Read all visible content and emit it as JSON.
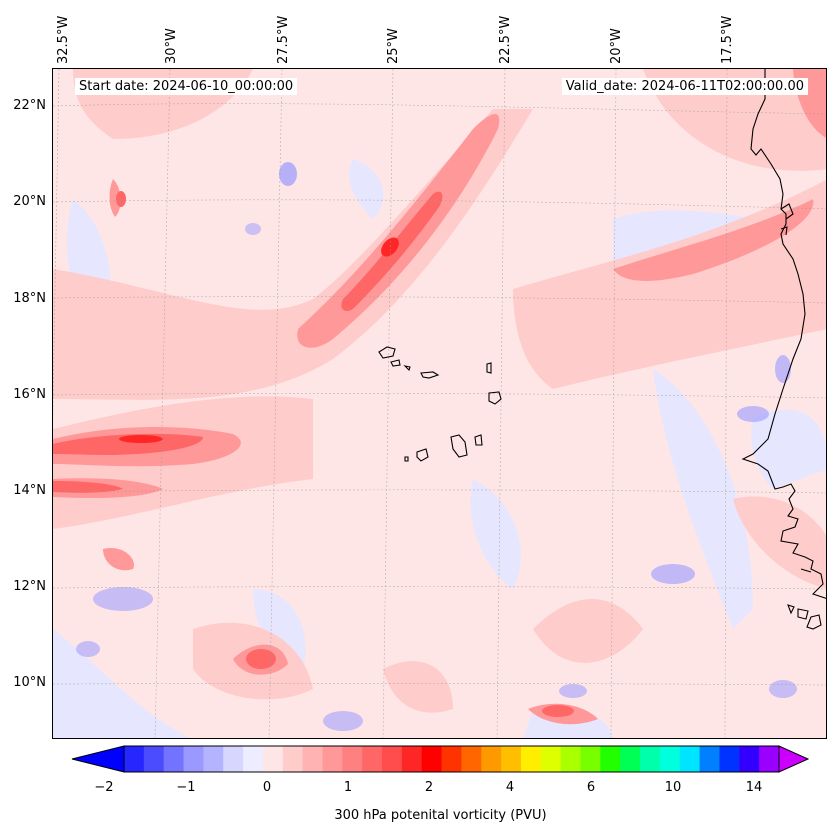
{
  "longitude_labels": [
    "32.5°W",
    "30°W",
    "27.5°W",
    "25°W",
    "22.5°W",
    "20°W",
    "17.5°W"
  ],
  "latitude_labels": [
    "22°N",
    "20°N",
    "18°N",
    "16°N",
    "14°N",
    "12°N",
    "10°N"
  ],
  "start_date": "Start date: 2024-06-10_00:00:00",
  "valid_date": "Valid_date: 2024-06-11T02:00:00.00",
  "colorbar": {
    "label": "300 hPa potenital vorticity (PVU)",
    "tick_labels": [
      "−2",
      "−1",
      "0",
      "1",
      "2",
      "4",
      "6",
      "10",
      "14"
    ],
    "colors": [
      "#0000ff",
      "#2626ff",
      "#4c4cff",
      "#7373ff",
      "#9999ff",
      "#b3b3ff",
      "#d6d6ff",
      "#ededff",
      "#ffe6e6",
      "#ffcccc",
      "#ffb3b3",
      "#ff9999",
      "#ff8080",
      "#ff6666",
      "#ff4c4c",
      "#ff2626",
      "#ff0000",
      "#ff3300",
      "#ff6600",
      "#ff9900",
      "#ffbf00",
      "#ffee00",
      "#ddff00",
      "#aaff00",
      "#77ff00",
      "#22ff00",
      "#00ff55",
      "#00ffaa",
      "#00ffdd",
      "#00e5ff",
      "#0080ff",
      "#0033ff",
      "#3300ff",
      "#9900ff",
      "#cc00ff"
    ]
  },
  "palette": {
    "neg_strong": "#9999ff",
    "neg_weak": "#e6e6ff",
    "pos_weak": "#ffe6e6",
    "pos_light": "#ffcccc",
    "pos_mid": "#ff9999",
    "pos_strong": "#ff6666",
    "pos_peak": "#ff2626",
    "coast": "#000000"
  }
}
